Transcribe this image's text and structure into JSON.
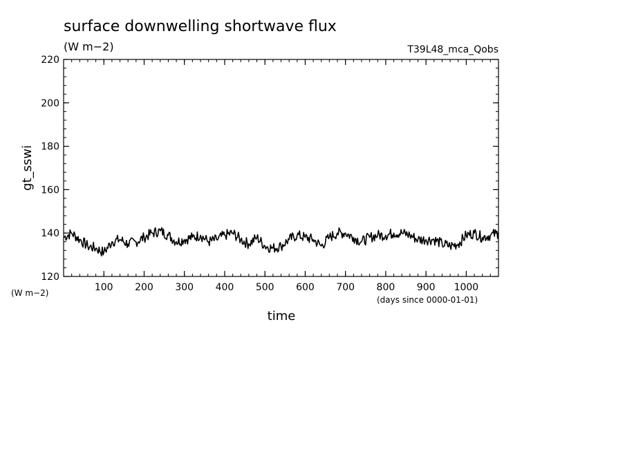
{
  "chart_data": {
    "type": "line",
    "title": "surface downwelling shortwave flux",
    "units": "(W m−2)",
    "run_label": "T39L48_mca_Qobs",
    "xlabel": "time",
    "x_units": "(days since 0000-01-01)",
    "ylabel": "gt_sswi",
    "y_units": "(W m−2)",
    "xlim": [
      0,
      1080
    ],
    "ylim": [
      120,
      220
    ],
    "x_ticks": [
      100,
      200,
      300,
      400,
      500,
      600,
      700,
      800,
      900,
      1000
    ],
    "x_tick_labels": [
      "100",
      "200",
      "300",
      "400",
      "500",
      "600",
      "700",
      "800",
      "900",
      "1000"
    ],
    "y_ticks": [
      120,
      140,
      160,
      180,
      200,
      220
    ],
    "y_tick_labels": [
      "120",
      "140",
      "160",
      "180",
      "200",
      "220"
    ],
    "x_minor_step": 20,
    "y_minor_step": 4,
    "grid": false,
    "line_color": "#000000",
    "series": [
      {
        "x": [
          0,
          20,
          40,
          60,
          80,
          100,
          120,
          140,
          160,
          180,
          200,
          220,
          240,
          260,
          280,
          300,
          320,
          340,
          360,
          380,
          400,
          420,
          440,
          460,
          480,
          500,
          520,
          540,
          560,
          580,
          600,
          620,
          640,
          660,
          680,
          700,
          720,
          740,
          760,
          780,
          800,
          820,
          840,
          860,
          880,
          900,
          920,
          940,
          960,
          980,
          1000,
          1020,
          1040,
          1060,
          1080
        ],
        "values": [
          138,
          140,
          137,
          134,
          133,
          131,
          136,
          137,
          135,
          136,
          138,
          140,
          141,
          139,
          136,
          137,
          138,
          139,
          136,
          137,
          139,
          140,
          137,
          135,
          138,
          134,
          133,
          134,
          137,
          139,
          138,
          137,
          134,
          138,
          140,
          140,
          138,
          136,
          138,
          139,
          139,
          140,
          140,
          139,
          137,
          137,
          137,
          135,
          134,
          135,
          139,
          140,
          138,
          139,
          140
        ]
      }
    ]
  }
}
